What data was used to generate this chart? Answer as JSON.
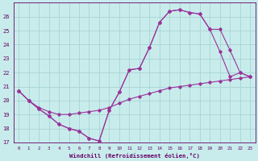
{
  "xlabel": "Windchill (Refroidissement éolien,°C)",
  "bg_color": "#c8ecec",
  "grid_color": "#aad4d4",
  "line_color": "#993399",
  "xlim": [
    -0.5,
    23.5
  ],
  "ylim": [
    17,
    27
  ],
  "yticks": [
    17,
    18,
    19,
    20,
    21,
    22,
    23,
    24,
    25,
    26
  ],
  "xticks": [
    0,
    1,
    2,
    3,
    4,
    5,
    6,
    7,
    8,
    9,
    10,
    11,
    12,
    13,
    14,
    15,
    16,
    17,
    18,
    19,
    20,
    21,
    22,
    23
  ],
  "line1_x": [
    0,
    1,
    2,
    3,
    4,
    5,
    6,
    7,
    8,
    9,
    10,
    11,
    12,
    13,
    14,
    15,
    16,
    17,
    18,
    19,
    20,
    21,
    22,
    23
  ],
  "line1_y": [
    20.7,
    20.0,
    19.4,
    18.9,
    18.3,
    18.0,
    17.8,
    17.3,
    17.1,
    19.3,
    20.6,
    22.2,
    22.3,
    23.8,
    25.6,
    26.4,
    26.5,
    26.3,
    26.2,
    25.1,
    23.5,
    21.7,
    22.0,
    21.7
  ],
  "line2_x": [
    0,
    1,
    2,
    3,
    4,
    5,
    6,
    7,
    8,
    9,
    10,
    11,
    12,
    13,
    14,
    15,
    16,
    17,
    18,
    19,
    20,
    21,
    22,
    23
  ],
  "line2_y": [
    20.7,
    20.0,
    19.5,
    19.2,
    19.0,
    19.0,
    19.1,
    19.2,
    19.3,
    19.5,
    19.8,
    20.1,
    20.3,
    20.5,
    20.7,
    20.9,
    21.0,
    21.1,
    21.2,
    21.3,
    21.4,
    21.5,
    21.6,
    21.7
  ],
  "line3_x": [
    0,
    1,
    2,
    3,
    4,
    5,
    6,
    7,
    8,
    9,
    10,
    11,
    12,
    13,
    14,
    15,
    16,
    17,
    18,
    19,
    20,
    21,
    22,
    23
  ],
  "line3_y": [
    20.7,
    20.0,
    19.4,
    18.9,
    18.3,
    18.0,
    17.8,
    17.3,
    17.1,
    19.3,
    20.6,
    22.2,
    22.3,
    23.8,
    25.6,
    26.4,
    26.5,
    26.3,
    26.2,
    25.1,
    25.1,
    23.6,
    22.0,
    21.7
  ]
}
